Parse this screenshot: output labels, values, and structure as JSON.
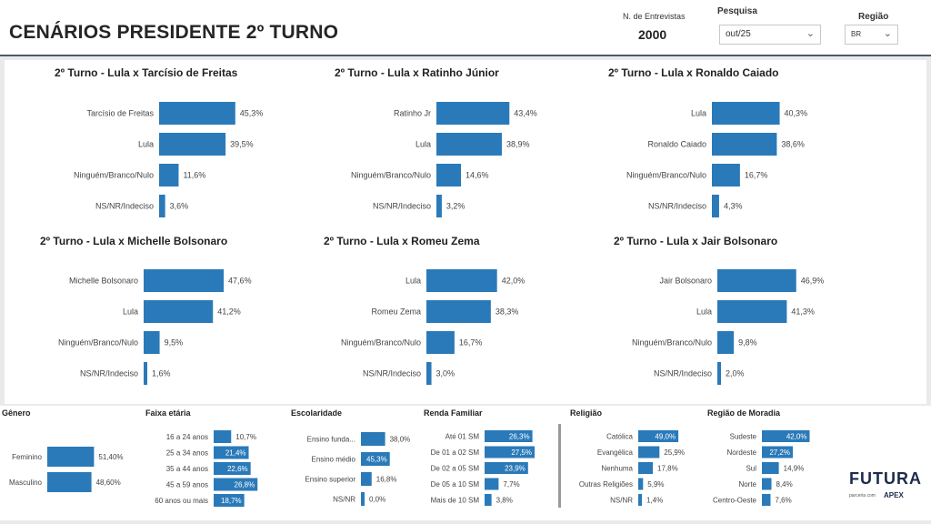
{
  "header": {
    "title": "CENÁRIOS PRESIDENTE 2º TURNO",
    "entrevistas_label": "N. de Entrevistas",
    "entrevistas_value": "2000",
    "pesquisa_label": "Pesquisa",
    "pesquisa_value": "out/25",
    "regiao_label": "Região",
    "regiao_value": "BR"
  },
  "colors": {
    "bar": "#2a7ab9",
    "header_border": "#4a5a6e"
  },
  "chart_data": [
    {
      "type": "bar",
      "title": "2º Turno - Lula x Tarcísio de Freitas",
      "categories": [
        "Tarcísio de Freitas",
        "Lula",
        "Ninguém/Branco/Nulo",
        "NS/NR/Indeciso"
      ],
      "values": [
        45.3,
        39.5,
        11.6,
        3.6
      ],
      "labels": [
        "45,3%",
        "39,5%",
        "11,6%",
        "3,6%"
      ]
    },
    {
      "type": "bar",
      "title": "2º Turno - Lula x Ratinho Júnior",
      "categories": [
        "Ratinho Jr",
        "Lula",
        "Ninguém/Branco/Nulo",
        "NS/NR/Indeciso"
      ],
      "values": [
        43.4,
        38.9,
        14.6,
        3.2
      ],
      "labels": [
        "43,4%",
        "38,9%",
        "14,6%",
        "3,2%"
      ]
    },
    {
      "type": "bar",
      "title": "2º Turno - Lula x Ronaldo Caiado",
      "categories": [
        "Lula",
        "Ronaldo Caiado",
        "Ninguém/Branco/Nulo",
        "NS/NR/Indeciso"
      ],
      "values": [
        40.3,
        38.6,
        16.7,
        4.3
      ],
      "labels": [
        "40,3%",
        "38,6%",
        "16,7%",
        "4,3%"
      ]
    },
    {
      "type": "bar",
      "title": "2º Turno - Lula x Michelle Bolsonaro",
      "categories": [
        "Michelle Bolsonaro",
        "Lula",
        "Ninguém/Branco/Nulo",
        "NS/NR/Indeciso"
      ],
      "values": [
        47.6,
        41.2,
        9.5,
        1.6
      ],
      "labels": [
        "47,6%",
        "41,2%",
        "9,5%",
        "1,6%"
      ]
    },
    {
      "type": "bar",
      "title": "2º Turno - Lula x Romeu Zema",
      "categories": [
        "Lula",
        "Romeu Zema",
        "Ninguém/Branco/Nulo",
        "NS/NR/Indeciso"
      ],
      "values": [
        42.0,
        38.3,
        16.7,
        3.0
      ],
      "labels": [
        "42,0%",
        "38,3%",
        "16,7%",
        "3,0%"
      ]
    },
    {
      "type": "bar",
      "title": "2º Turno - Lula x Jair Bolsonaro",
      "categories": [
        "Jair Bolsonaro",
        "Lula",
        "Ninguém/Branco/Nulo",
        "NS/NR/Indeciso"
      ],
      "values": [
        46.9,
        41.3,
        9.8,
        2.0
      ],
      "labels": [
        "46,9%",
        "41,3%",
        "9,8%",
        "2,0%"
      ]
    },
    {
      "type": "bar",
      "title": "Gênero",
      "categories": [
        "Feminino",
        "Masculino"
      ],
      "values": [
        51.4,
        48.6
      ],
      "labels": [
        "51,40%",
        "48,60%"
      ]
    },
    {
      "type": "bar",
      "title": "Faixa etária",
      "categories": [
        "16 a 24 anos",
        "25 a 34 anos",
        "35 a 44 anos",
        "45 a 59 anos",
        "60 anos ou mais"
      ],
      "values": [
        10.7,
        21.4,
        22.6,
        26.8,
        18.7
      ],
      "labels": [
        "10,7%",
        "21,4%",
        "22,6%",
        "26,8%",
        "18,7%"
      ]
    },
    {
      "type": "bar",
      "title": "Escolaridade",
      "categories": [
        "Ensino funda...",
        "Ensino médio",
        "Ensino superior",
        "NS/NR"
      ],
      "values": [
        38.0,
        45.3,
        16.8,
        0.0
      ],
      "labels": [
        "38,0%",
        "45,3%",
        "16,8%",
        "0,0%"
      ]
    },
    {
      "type": "bar",
      "title": "Renda Familiar",
      "categories": [
        "Até 01 SM",
        "De 01 a 02 SM",
        "De 02 a 05 SM",
        "De 05 a 10 SM",
        "Mais de 10 SM"
      ],
      "values": [
        26.3,
        27.5,
        23.9,
        7.7,
        3.8
      ],
      "labels": [
        "26,3%",
        "27,5%",
        "23,9%",
        "7,7%",
        "3,8%"
      ]
    },
    {
      "type": "bar",
      "title": "Religião",
      "categories": [
        "Católica",
        "Evangélica",
        "Nenhuma",
        "Outras Religiões",
        "NS/NR"
      ],
      "values": [
        49.0,
        25.9,
        17.8,
        5.9,
        1.4
      ],
      "labels": [
        "49,0%",
        "25,9%",
        "17,8%",
        "5,9%",
        "1,4%"
      ]
    },
    {
      "type": "bar",
      "title": "Região de Moradia",
      "categories": [
        "Sudeste",
        "Nordeste",
        "Sul",
        "Norte",
        "Centro-Oeste"
      ],
      "values": [
        42.0,
        27.2,
        14.9,
        8.4,
        7.6
      ],
      "labels": [
        "42,0%",
        "27,2%",
        "14,9%",
        "8,4%",
        "7,6%"
      ]
    }
  ],
  "logo": {
    "name": "FUTURA",
    "sub": "parceria com",
    "partner": "APEX"
  }
}
